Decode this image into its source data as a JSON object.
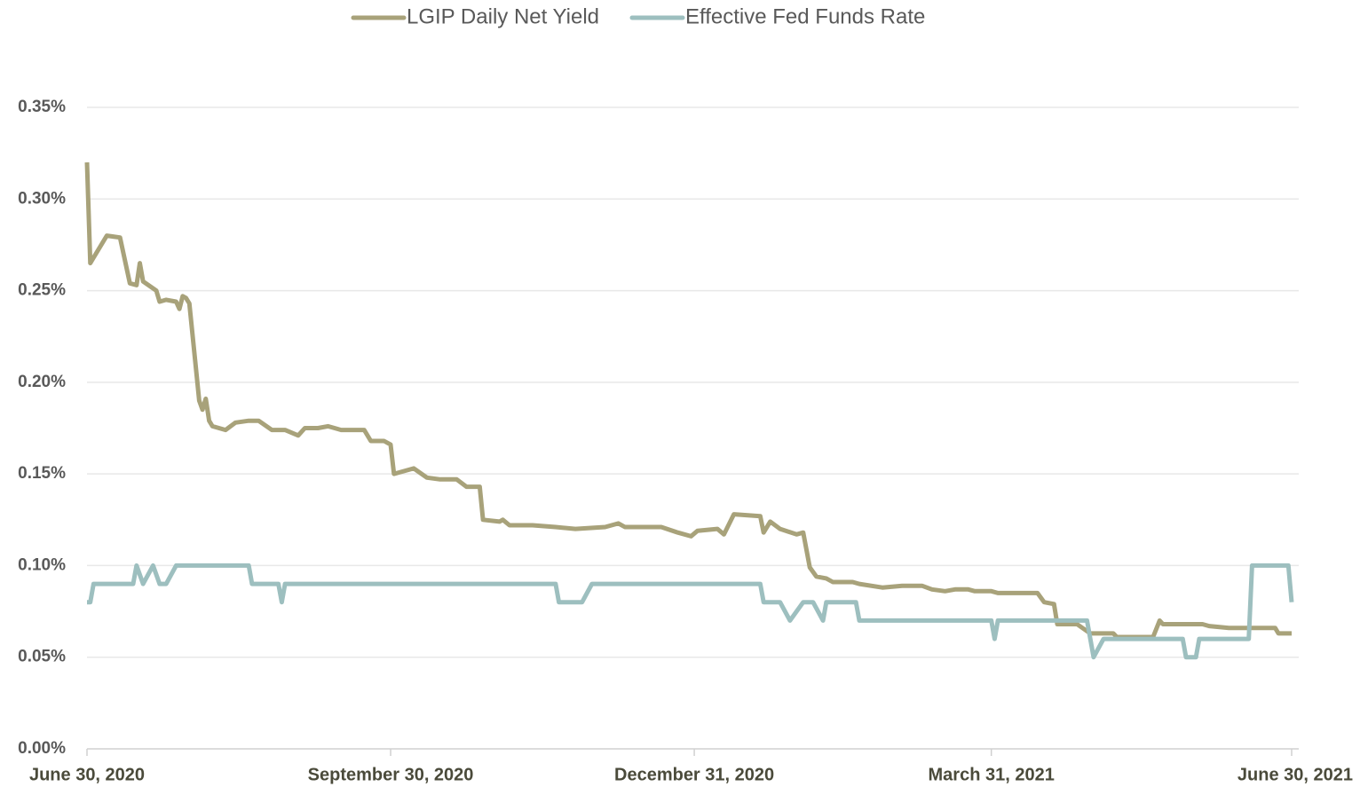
{
  "chart_data": {
    "type": "line",
    "xlim": [
      0,
      365
    ],
    "xticks": [
      {
        "value": 0,
        "label": "June 30, 2020"
      },
      {
        "value": 92,
        "label": "September 30, 2020"
      },
      {
        "value": 184,
        "label": "December 31, 2020"
      },
      {
        "value": 274,
        "label": "March 31, 2021"
      },
      {
        "value": 365,
        "label": "June 30, 2021"
      }
    ],
    "ylim": [
      0,
      0.35
    ],
    "yticks": [
      {
        "value": 0,
        "label": "0.00%"
      },
      {
        "value": 0.05,
        "label": "0.05%"
      },
      {
        "value": 0.1,
        "label": "0.10%"
      },
      {
        "value": 0.15,
        "label": "0.15%"
      },
      {
        "value": 0.2,
        "label": "0.20%"
      },
      {
        "value": 0.25,
        "label": "0.25%"
      },
      {
        "value": 0.3,
        "label": "0.30%"
      },
      {
        "value": 0.35,
        "label": "0.35%"
      }
    ],
    "grid": true,
    "legend": "top",
    "series": [
      {
        "name": "LGIP Daily Net Yield",
        "color": "#a8a27a",
        "x": [
          0,
          1,
          2,
          6,
          10,
          13,
          15,
          16,
          17,
          21,
          22,
          24,
          27,
          28,
          29,
          30,
          31,
          34,
          35,
          36,
          37,
          38,
          42,
          45,
          49,
          52,
          56,
          60,
          64,
          66,
          70,
          73,
          77,
          84,
          86,
          90,
          92,
          93,
          99,
          103,
          107,
          112,
          115,
          119,
          120,
          125,
          126,
          128,
          135,
          142,
          148,
          157,
          161,
          163,
          174,
          179,
          183,
          185,
          191,
          193,
          196,
          204,
          205,
          207,
          210,
          215,
          217,
          219,
          221,
          224,
          226,
          232,
          234,
          241,
          247,
          253,
          256,
          260,
          263,
          267,
          269,
          274,
          276,
          288,
          290,
          293,
          294,
          300,
          304,
          311,
          312,
          323,
          325,
          326,
          338,
          340,
          346,
          356,
          360,
          361,
          365
        ],
        "values": [
          0.32,
          0.265,
          0.268,
          0.28,
          0.279,
          0.254,
          0.253,
          0.265,
          0.255,
          0.25,
          0.244,
          0.245,
          0.244,
          0.24,
          0.247,
          0.246,
          0.243,
          0.19,
          0.185,
          0.191,
          0.179,
          0.176,
          0.174,
          0.178,
          0.179,
          0.179,
          0.174,
          0.174,
          0.171,
          0.175,
          0.175,
          0.176,
          0.174,
          0.174,
          0.168,
          0.168,
          0.166,
          0.15,
          0.153,
          0.148,
          0.147,
          0.147,
          0.143,
          0.143,
          0.125,
          0.124,
          0.125,
          0.122,
          0.122,
          0.121,
          0.12,
          0.121,
          0.123,
          0.121,
          0.121,
          0.118,
          0.116,
          0.119,
          0.12,
          0.117,
          0.128,
          0.127,
          0.118,
          0.124,
          0.12,
          0.117,
          0.118,
          0.099,
          0.094,
          0.093,
          0.091,
          0.091,
          0.09,
          0.088,
          0.089,
          0.089,
          0.087,
          0.086,
          0.087,
          0.087,
          0.086,
          0.086,
          0.085,
          0.085,
          0.08,
          0.079,
          0.068,
          0.068,
          0.063,
          0.063,
          0.061,
          0.061,
          0.07,
          0.068,
          0.068,
          0.067,
          0.066,
          0.066,
          0.066,
          0.063,
          0.063
        ]
      },
      {
        "name": "Effective Fed Funds Rate",
        "color": "#9dbfbf",
        "x": [
          0,
          1,
          2,
          14,
          15,
          17,
          20,
          22,
          24,
          27,
          49,
          50,
          58,
          59,
          60,
          142,
          143,
          150,
          153,
          204,
          205,
          210,
          213,
          217,
          220,
          223,
          224,
          233,
          234,
          274,
          275,
          276,
          303,
          305,
          308,
          332,
          333,
          336,
          337,
          352,
          353,
          364,
          365
        ],
        "values": [
          0.08,
          0.08,
          0.09,
          0.09,
          0.1,
          0.09,
          0.1,
          0.09,
          0.09,
          0.1,
          0.1,
          0.09,
          0.09,
          0.08,
          0.09,
          0.09,
          0.08,
          0.08,
          0.09,
          0.09,
          0.08,
          0.08,
          0.07,
          0.08,
          0.08,
          0.07,
          0.08,
          0.08,
          0.07,
          0.07,
          0.06,
          0.07,
          0.07,
          0.05,
          0.06,
          0.06,
          0.05,
          0.05,
          0.06,
          0.06,
          0.1,
          0.1,
          0.08
        ]
      }
    ]
  }
}
